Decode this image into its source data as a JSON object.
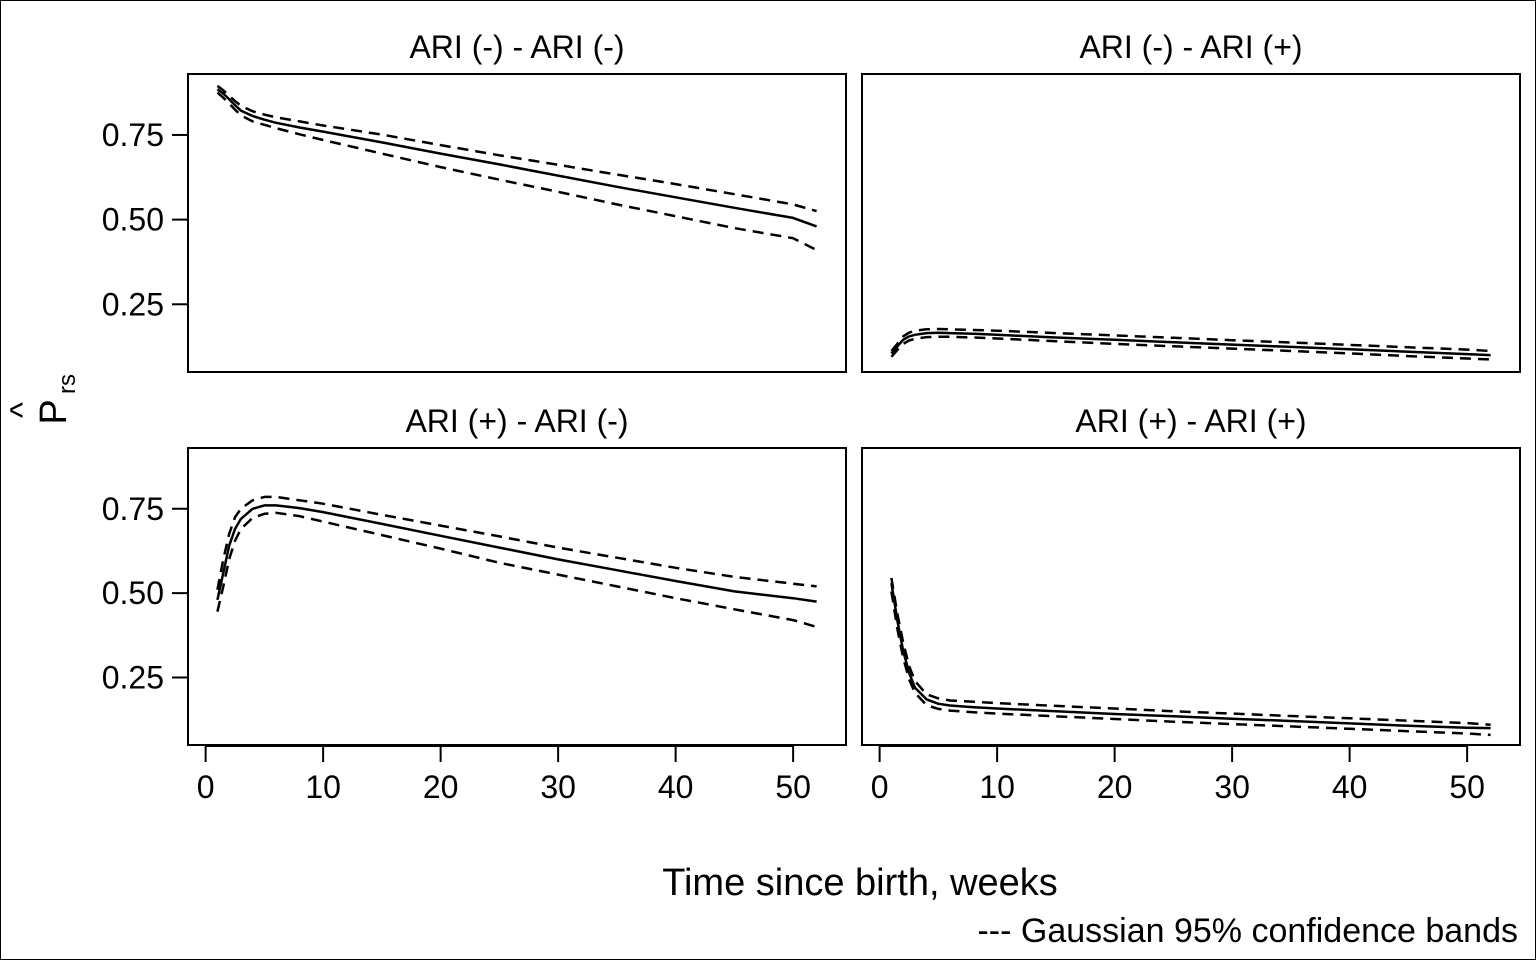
{
  "chart_data": {
    "type": "line",
    "xlabel": "Time since birth, weeks",
    "ylabel": "P",
    "ylabel_hat": "^",
    "ylabel_sub": "rs",
    "note": "--- Gaussian 95% confidence bands",
    "xlim": [
      -1.5,
      54.5
    ],
    "ylim": [
      0.05,
      0.93
    ],
    "x_ticks": [
      0,
      10,
      20,
      30,
      40,
      50
    ],
    "x_tick_labels": [
      "0",
      "10",
      "20",
      "30",
      "40",
      "50"
    ],
    "y_ticks": [
      0.25,
      0.5,
      0.75
    ],
    "y_tick_labels": [
      "0.25",
      "0.50",
      "0.75"
    ],
    "x": [
      1,
      1.5,
      2,
      2.5,
      3,
      4,
      5,
      6,
      8,
      10,
      15,
      20,
      25,
      30,
      35,
      40,
      45,
      50,
      52
    ],
    "panels": [
      {
        "title": "ARI (-) - ARI (-)",
        "series": [
          {
            "style": "solid",
            "values": [
              0.885,
              0.872,
              0.856,
              0.838,
              0.822,
              0.806,
              0.795,
              0.786,
              0.772,
              0.76,
              0.728,
              0.695,
              0.663,
              0.63,
              0.597,
              0.566,
              0.535,
              0.505,
              0.48
            ]
          },
          {
            "style": "dashed",
            "values": [
              0.895,
              0.882,
              0.866,
              0.85,
              0.836,
              0.82,
              0.81,
              0.802,
              0.79,
              0.778,
              0.751,
              0.72,
              0.69,
              0.662,
              0.633,
              0.605,
              0.575,
              0.545,
              0.525
            ]
          },
          {
            "style": "dashed",
            "values": [
              0.875,
              0.86,
              0.843,
              0.825,
              0.808,
              0.79,
              0.78,
              0.77,
              0.752,
              0.735,
              0.695,
              0.655,
              0.618,
              0.582,
              0.545,
              0.51,
              0.475,
              0.445,
              0.41
            ]
          }
        ]
      },
      {
        "title": "ARI (-) - ARI (+)",
        "series": [
          {
            "style": "solid",
            "values": [
              0.105,
              0.125,
              0.145,
              0.155,
              0.16,
              0.165,
              0.166,
              0.165,
              0.163,
              0.16,
              0.152,
              0.145,
              0.138,
              0.131,
              0.124,
              0.117,
              0.11,
              0.103,
              0.1
            ]
          },
          {
            "style": "dashed",
            "values": [
              0.112,
              0.133,
              0.155,
              0.166,
              0.172,
              0.176,
              0.177,
              0.176,
              0.174,
              0.172,
              0.165,
              0.158,
              0.151,
              0.144,
              0.137,
              0.13,
              0.123,
              0.116,
              0.112
            ]
          },
          {
            "style": "dashed",
            "values": [
              0.095,
              0.115,
              0.133,
              0.143,
              0.148,
              0.153,
              0.154,
              0.154,
              0.152,
              0.149,
              0.141,
              0.133,
              0.126,
              0.119,
              0.112,
              0.105,
              0.097,
              0.09,
              0.087
            ]
          }
        ]
      },
      {
        "title": "ARI (+) - ARI (-)",
        "series": [
          {
            "style": "solid",
            "values": [
              0.48,
              0.56,
              0.64,
              0.69,
              0.72,
              0.75,
              0.76,
              0.76,
              0.752,
              0.74,
              0.705,
              0.67,
              0.635,
              0.6,
              0.568,
              0.536,
              0.505,
              0.485,
              0.475
            ]
          },
          {
            "style": "dashed",
            "values": [
              0.51,
              0.6,
              0.675,
              0.725,
              0.75,
              0.775,
              0.785,
              0.785,
              0.775,
              0.765,
              0.732,
              0.7,
              0.668,
              0.635,
              0.605,
              0.575,
              0.548,
              0.528,
              0.52
            ]
          },
          {
            "style": "dashed",
            "values": [
              0.445,
              0.52,
              0.6,
              0.655,
              0.69,
              0.723,
              0.735,
              0.738,
              0.728,
              0.712,
              0.672,
              0.632,
              0.59,
              0.555,
              0.52,
              0.485,
              0.452,
              0.42,
              0.4
            ]
          }
        ]
      },
      {
        "title": "ARI (+) - ARI (+)",
        "series": [
          {
            "style": "solid",
            "values": [
              0.53,
              0.42,
              0.33,
              0.265,
              0.22,
              0.185,
              0.172,
              0.167,
              0.162,
              0.158,
              0.15,
              0.142,
              0.135,
              0.128,
              0.121,
              0.114,
              0.107,
              0.101,
              0.1
            ]
          },
          {
            "style": "dashed",
            "values": [
              0.545,
              0.44,
              0.355,
              0.285,
              0.24,
              0.2,
              0.188,
              0.182,
              0.178,
              0.174,
              0.166,
              0.158,
              0.15,
              0.143,
              0.136,
              0.129,
              0.122,
              0.115,
              0.11
            ]
          },
          {
            "style": "dashed",
            "values": [
              0.505,
              0.395,
              0.31,
              0.245,
              0.205,
              0.168,
              0.157,
              0.152,
              0.147,
              0.143,
              0.135,
              0.127,
              0.119,
              0.112,
              0.105,
              0.098,
              0.091,
              0.084,
              0.08
            ]
          }
        ]
      }
    ]
  }
}
